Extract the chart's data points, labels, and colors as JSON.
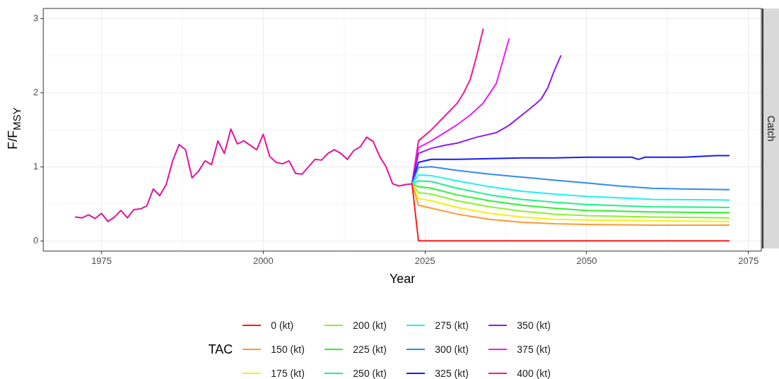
{
  "chart_data": {
    "type": "line",
    "xlabel": "Year",
    "ylabel": "F/F$_{MSY}$",
    "legend_title": "TAC",
    "legend": "bottom",
    "grid": true,
    "marker": "none",
    "line_style": "solid",
    "xlim": [
      1966,
      2077
    ],
    "xticks": [
      1975,
      2000,
      2025,
      2050,
      2075
    ],
    "ylim": [
      -0.14,
      3.14
    ],
    "yticks": [
      0,
      1,
      2,
      3
    ],
    "annotations": [
      "Catch"
    ],
    "series": [
      {
        "color": "#e6119e",
        "x": [
          1971,
          1972,
          1973,
          1974,
          1975,
          1976,
          1977,
          1978,
          1979,
          1980,
          1981,
          1982,
          1983,
          1984,
          1985,
          1986,
          1987,
          1988,
          1989,
          1990,
          1991,
          1992,
          1993,
          1994,
          1995,
          1996,
          1997,
          1998,
          1999,
          2000,
          2001,
          2002,
          2003,
          2004,
          2005,
          2006,
          2007,
          2008,
          2009,
          2010,
          2011,
          2012,
          2013,
          2014,
          2015,
          2016,
          2017,
          2018,
          2019,
          2020,
          2021,
          2022,
          2023
        ],
        "values": [
          0.32,
          0.31,
          0.35,
          0.3,
          0.37,
          0.26,
          0.32,
          0.41,
          0.31,
          0.42,
          0.43,
          0.47,
          0.7,
          0.61,
          0.76,
          1.08,
          1.3,
          1.23,
          0.85,
          0.94,
          1.08,
          1.03,
          1.35,
          1.18,
          1.51,
          1.31,
          1.35,
          1.29,
          1.23,
          1.44,
          1.14,
          1.06,
          1.04,
          1.08,
          0.91,
          0.9,
          1.0,
          1.1,
          1.09,
          1.18,
          1.23,
          1.18,
          1.1,
          1.22,
          1.27,
          1.4,
          1.34,
          1.14,
          1.0,
          0.77,
          0.74,
          0.76,
          0.77
        ]
      },
      {
        "name": "0 (kt)",
        "color": "#ff1a1a",
        "x": [
          2023,
          2024,
          2072
        ],
        "values": [
          0.77,
          0,
          0
        ]
      },
      {
        "name": "150 (kt)",
        "color": "#ff9933",
        "x": [
          2023,
          2024,
          2026,
          2030,
          2035,
          2040,
          2045,
          2050,
          2060,
          2072
        ],
        "values": [
          0.77,
          0.48,
          0.44,
          0.36,
          0.29,
          0.25,
          0.23,
          0.22,
          0.21,
          0.21
        ]
      },
      {
        "name": "175 (kt)",
        "color": "#f2f20d",
        "x": [
          2023,
          2024,
          2026,
          2030,
          2035,
          2040,
          2045,
          2050,
          2060,
          2072
        ],
        "values": [
          0.77,
          0.57,
          0.54,
          0.45,
          0.37,
          0.32,
          0.29,
          0.28,
          0.27,
          0.26
        ]
      },
      {
        "name": "200 (kt)",
        "color": "#8cf22e",
        "x": [
          2023,
          2024,
          2026,
          2030,
          2035,
          2040,
          2045,
          2050,
          2060,
          2072
        ],
        "values": [
          0.77,
          0.65,
          0.63,
          0.54,
          0.46,
          0.4,
          0.36,
          0.34,
          0.32,
          0.31
        ]
      },
      {
        "name": "225 (kt)",
        "color": "#2ef22e",
        "x": [
          2023,
          2024,
          2026,
          2030,
          2035,
          2040,
          2045,
          2050,
          2060,
          2072
        ],
        "values": [
          0.77,
          0.73,
          0.71,
          0.62,
          0.54,
          0.48,
          0.44,
          0.41,
          0.39,
          0.38
        ]
      },
      {
        "name": "250 (kt)",
        "color": "#1af28c",
        "x": [
          2023,
          2024,
          2026,
          2030,
          2035,
          2040,
          2045,
          2050,
          2060,
          2072
        ],
        "values": [
          0.77,
          0.81,
          0.8,
          0.71,
          0.62,
          0.56,
          0.52,
          0.49,
          0.46,
          0.45
        ]
      },
      {
        "name": "275 (kt)",
        "color": "#1af2f2",
        "x": [
          2023,
          2024,
          2026,
          2030,
          2035,
          2040,
          2045,
          2050,
          2055,
          2060,
          2072
        ],
        "values": [
          0.77,
          0.89,
          0.88,
          0.81,
          0.73,
          0.67,
          0.63,
          0.6,
          0.58,
          0.56,
          0.55
        ]
      },
      {
        "name": "300 (kt)",
        "color": "#2e8cf2",
        "x": [
          2023,
          2024,
          2026,
          2030,
          2035,
          2040,
          2045,
          2050,
          2055,
          2060,
          2065,
          2072
        ],
        "values": [
          0.77,
          0.99,
          1.0,
          0.95,
          0.9,
          0.86,
          0.82,
          0.78,
          0.74,
          0.71,
          0.7,
          0.69
        ]
      },
      {
        "name": "325 (kt)",
        "color": "#1a1af2",
        "x": [
          2023,
          2024,
          2026,
          2030,
          2035,
          2040,
          2045,
          2050,
          2055,
          2057,
          2058,
          2059,
          2065,
          2070,
          2072
        ],
        "values": [
          0.77,
          1.06,
          1.1,
          1.1,
          1.11,
          1.12,
          1.12,
          1.13,
          1.13,
          1.13,
          1.1,
          1.13,
          1.13,
          1.15,
          1.15
        ]
      },
      {
        "name": "350 (kt)",
        "color": "#8c1af2",
        "x": [
          2023,
          2024,
          2026,
          2028,
          2030,
          2033,
          2036,
          2038,
          2040,
          2042,
          2043,
          2044,
          2045,
          2046
        ],
        "values": [
          0.77,
          1.18,
          1.25,
          1.29,
          1.32,
          1.4,
          1.46,
          1.56,
          1.7,
          1.84,
          1.92,
          2.07,
          2.3,
          2.5
        ]
      },
      {
        "name": "375 (kt)",
        "color": "#f21af2",
        "x": [
          2023,
          2024,
          2026,
          2028,
          2030,
          2032,
          2034,
          2036,
          2037,
          2038
        ],
        "values": [
          0.77,
          1.26,
          1.35,
          1.46,
          1.57,
          1.7,
          1.86,
          2.12,
          2.42,
          2.73
        ]
      },
      {
        "name": "400 (kt)",
        "color": "#f21a8c",
        "x": [
          2023,
          2024,
          2026,
          2028,
          2030,
          2031,
          2032,
          2033,
          2034
        ],
        "values": [
          0.77,
          1.35,
          1.5,
          1.68,
          1.86,
          2.0,
          2.18,
          2.5,
          2.86
        ]
      }
    ]
  }
}
